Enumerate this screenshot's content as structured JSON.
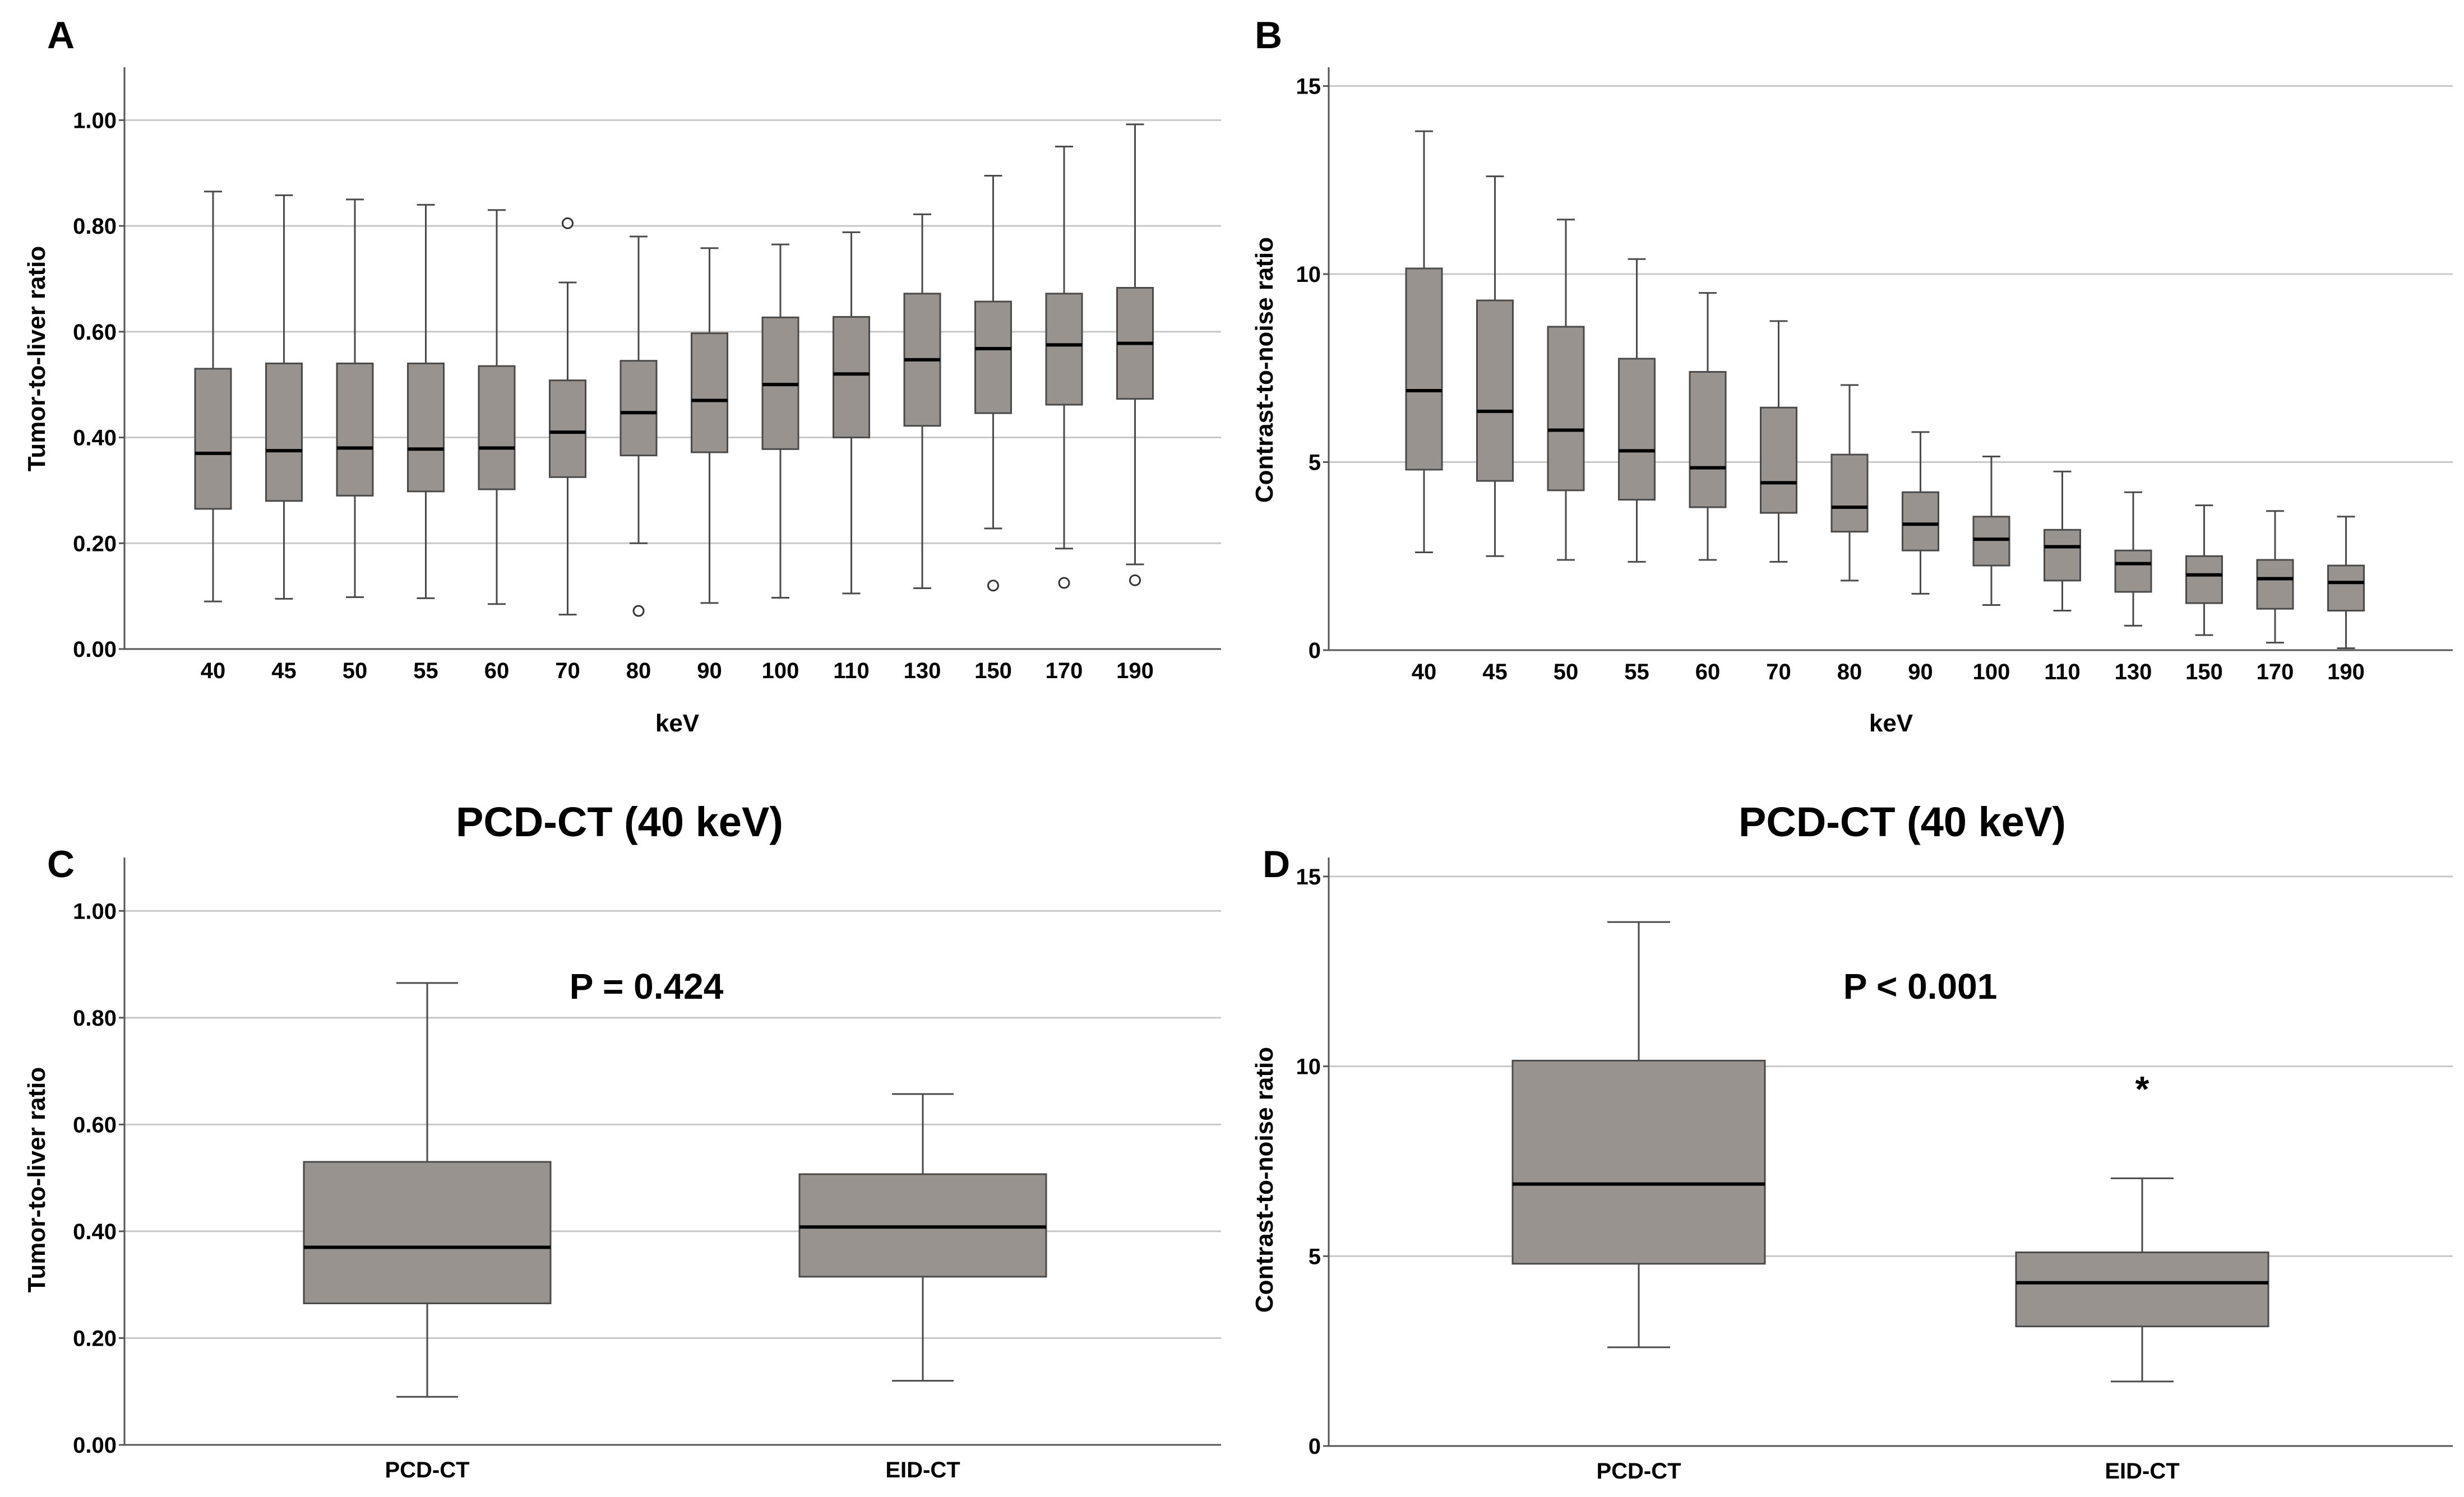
{
  "chart_data": [
    {
      "panel": "A",
      "type": "box",
      "title": "",
      "xlabel": "keV",
      "ylabel": "Tumor-to-liver ratio",
      "ylim": [
        0,
        1.1
      ],
      "yticks": [
        0,
        0.2,
        0.4,
        0.6,
        0.8,
        1.0
      ],
      "ytick_labels": [
        "0.00",
        "0.20",
        "0.40",
        "0.60",
        "0.80",
        "1.00"
      ],
      "grid": true,
      "categories": [
        "40",
        "45",
        "50",
        "55",
        "60",
        "70",
        "80",
        "90",
        "100",
        "110",
        "130",
        "150",
        "170",
        "190"
      ],
      "boxes": [
        {
          "min": 0.09,
          "q1": 0.265,
          "median": 0.37,
          "q3": 0.53,
          "max": 0.865
        },
        {
          "min": 0.095,
          "q1": 0.28,
          "median": 0.375,
          "q3": 0.54,
          "max": 0.858
        },
        {
          "min": 0.098,
          "q1": 0.29,
          "median": 0.38,
          "q3": 0.54,
          "max": 0.85
        },
        {
          "min": 0.096,
          "q1": 0.298,
          "median": 0.378,
          "q3": 0.54,
          "max": 0.84
        },
        {
          "min": 0.085,
          "q1": 0.302,
          "median": 0.38,
          "q3": 0.535,
          "max": 0.83
        },
        {
          "min": 0.065,
          "q1": 0.325,
          "median": 0.41,
          "q3": 0.508,
          "max": 0.693
        },
        {
          "min": 0.2,
          "q1": 0.366,
          "median": 0.447,
          "q3": 0.545,
          "max": 0.78
        },
        {
          "min": 0.087,
          "q1": 0.372,
          "median": 0.47,
          "q3": 0.597,
          "max": 0.758
        },
        {
          "min": 0.097,
          "q1": 0.378,
          "median": 0.5,
          "q3": 0.627,
          "max": 0.765
        },
        {
          "min": 0.105,
          "q1": 0.4,
          "median": 0.52,
          "q3": 0.628,
          "max": 0.788
        },
        {
          "min": 0.115,
          "q1": 0.422,
          "median": 0.547,
          "q3": 0.672,
          "max": 0.822
        },
        {
          "min": 0.228,
          "q1": 0.446,
          "median": 0.568,
          "q3": 0.657,
          "max": 0.895
        },
        {
          "min": 0.19,
          "q1": 0.462,
          "median": 0.575,
          "q3": 0.672,
          "max": 0.95
        },
        {
          "min": 0.16,
          "q1": 0.473,
          "median": 0.578,
          "q3": 0.683,
          "max": 0.992
        }
      ],
      "outliers": [
        {
          "category": "70",
          "value": 0.805
        },
        {
          "category": "80",
          "value": 0.072
        },
        {
          "category": "150",
          "value": 0.12
        },
        {
          "category": "170",
          "value": 0.125
        },
        {
          "category": "190",
          "value": 0.13
        }
      ]
    },
    {
      "panel": "B",
      "type": "box",
      "title": "",
      "xlabel": "keV",
      "ylabel": "Contrast-to-noise ratio",
      "ylim": [
        0,
        15.5
      ],
      "yticks": [
        0,
        5,
        10,
        15
      ],
      "ytick_labels": [
        "0",
        "5",
        "10",
        "15"
      ],
      "grid": true,
      "categories": [
        "40",
        "45",
        "50",
        "55",
        "60",
        "70",
        "80",
        "90",
        "100",
        "110",
        "130",
        "150",
        "170",
        "190"
      ],
      "boxes": [
        {
          "min": 2.6,
          "q1": 4.8,
          "median": 6.9,
          "q3": 10.15,
          "max": 13.8
        },
        {
          "min": 2.5,
          "q1": 4.5,
          "median": 6.35,
          "q3": 9.3,
          "max": 12.6
        },
        {
          "min": 2.4,
          "q1": 4.25,
          "median": 5.85,
          "q3": 8.6,
          "max": 11.45
        },
        {
          "min": 2.35,
          "q1": 4.0,
          "median": 5.3,
          "q3": 7.75,
          "max": 10.4
        },
        {
          "min": 2.4,
          "q1": 3.8,
          "median": 4.85,
          "q3": 7.4,
          "max": 9.5
        },
        {
          "min": 2.35,
          "q1": 3.65,
          "median": 4.45,
          "q3": 6.45,
          "max": 8.75
        },
        {
          "min": 1.85,
          "q1": 3.15,
          "median": 3.8,
          "q3": 5.2,
          "max": 7.05
        },
        {
          "min": 1.5,
          "q1": 2.65,
          "median": 3.35,
          "q3": 4.2,
          "max": 5.8
        },
        {
          "min": 1.2,
          "q1": 2.25,
          "median": 2.95,
          "q3": 3.55,
          "max": 5.15
        },
        {
          "min": 1.05,
          "q1": 1.85,
          "median": 2.75,
          "q3": 3.2,
          "max": 4.75
        },
        {
          "min": 0.65,
          "q1": 1.55,
          "median": 2.3,
          "q3": 2.65,
          "max": 4.2
        },
        {
          "min": 0.4,
          "q1": 1.25,
          "median": 2.0,
          "q3": 2.5,
          "max": 3.85
        },
        {
          "min": 0.2,
          "q1": 1.1,
          "median": 1.9,
          "q3": 2.4,
          "max": 3.7
        },
        {
          "min": 0.05,
          "q1": 1.05,
          "median": 1.8,
          "q3": 2.25,
          "max": 3.55
        }
      ],
      "outliers": []
    },
    {
      "panel": "C",
      "type": "box",
      "title": "PCD-CT (40 keV)",
      "xlabel": "",
      "ylabel": "Tumor-to-liver ratio",
      "ylim": [
        0,
        1.1
      ],
      "yticks": [
        0,
        0.2,
        0.4,
        0.6,
        0.8,
        1.0
      ],
      "ytick_labels": [
        "0.00",
        "0.20",
        "0.40",
        "0.60",
        "0.80",
        "1.00"
      ],
      "grid": true,
      "categories": [
        "PCD-CT",
        "EID-CT"
      ],
      "boxes": [
        {
          "min": 0.09,
          "q1": 0.265,
          "median": 0.37,
          "q3": 0.53,
          "max": 0.865
        },
        {
          "min": 0.12,
          "q1": 0.315,
          "median": 0.408,
          "q3": 0.507,
          "max": 0.657
        }
      ],
      "outliers": [],
      "annotation": "P = 0.424"
    },
    {
      "panel": "D",
      "type": "box",
      "title": "PCD-CT (40 keV)",
      "xlabel": "",
      "ylabel": "Contrast-to-noise ratio",
      "ylim": [
        0,
        15.5
      ],
      "yticks": [
        0,
        5,
        10,
        15
      ],
      "ytick_labels": [
        "0",
        "5",
        "10",
        "15"
      ],
      "grid": true,
      "categories": [
        "PCD-CT",
        "EID-CT"
      ],
      "boxes": [
        {
          "min": 2.6,
          "q1": 4.8,
          "median": 6.9,
          "q3": 10.15,
          "max": 13.8
        },
        {
          "min": 1.7,
          "q1": 3.15,
          "median": 4.3,
          "q3": 5.1,
          "max": 7.05
        }
      ],
      "outliers": [
        {
          "category": "EID-CT",
          "value": 9.55,
          "marker": "*"
        }
      ],
      "annotation": "P < 0.001"
    }
  ],
  "colors": {
    "box_fill": "#999390",
    "box_stroke": "#4a4a4a",
    "median": "#000000",
    "grid": "#c8c8c8",
    "axis": "#555555"
  }
}
